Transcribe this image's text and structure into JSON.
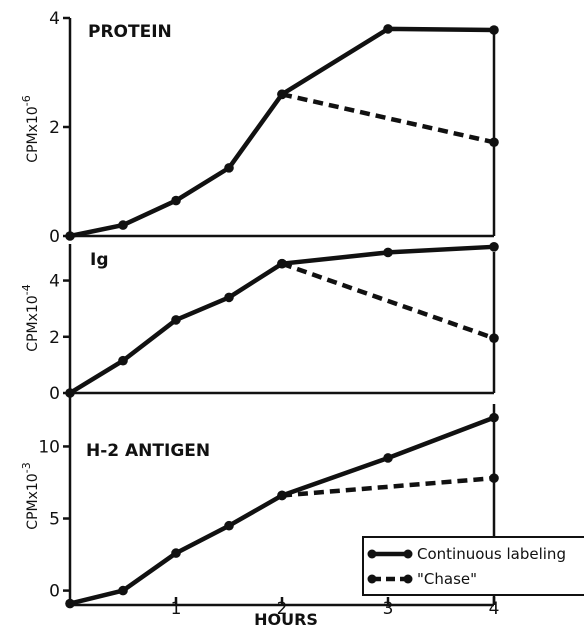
{
  "chart_data": {
    "type": "line",
    "xlabel": "HOURS",
    "x_ticks": [
      "1",
      "2",
      "3",
      "4"
    ],
    "xlim": [
      0,
      4
    ],
    "legend": {
      "placement": "lower-right of bottom panel",
      "entries": [
        {
          "label": "Continuous labeling",
          "style": "solid"
        },
        {
          "label": "\"Chase\"",
          "style": "dashed"
        }
      ]
    },
    "panels": [
      {
        "title": "PROTEIN",
        "ylabel_main": "CPMx10",
        "ylabel_exp": "-6",
        "ylim": [
          0,
          4
        ],
        "y_ticks": [
          0,
          2,
          4
        ],
        "y_tick_labels": [
          "0",
          "2",
          "4"
        ],
        "series": [
          {
            "name": "Continuous labeling",
            "style": "solid",
            "x": [
              0,
              0.5,
              1,
              1.5,
              2,
              3,
              4
            ],
            "y": [
              0,
              0.2,
              0.65,
              1.25,
              2.6,
              3.8,
              3.78
            ]
          },
          {
            "name": "\"Chase\"",
            "style": "dashed",
            "x": [
              2,
              4
            ],
            "y": [
              2.6,
              1.72
            ]
          }
        ]
      },
      {
        "title": "Ig",
        "ylabel_main": "CPMx10",
        "ylabel_exp": "-4",
        "ylim": [
          0,
          5.3
        ],
        "y_ticks": [
          0,
          2,
          4
        ],
        "y_tick_labels": [
          "0",
          "2",
          "4"
        ],
        "series": [
          {
            "name": "Continuous labeling",
            "style": "solid",
            "x": [
              0,
              0.5,
              1,
              1.5,
              2,
              3,
              4
            ],
            "y": [
              0,
              1.15,
              2.6,
              3.4,
              4.6,
              5.0,
              5.2
            ]
          },
          {
            "name": "\"Chase\"",
            "style": "dashed",
            "x": [
              2,
              4
            ],
            "y": [
              4.6,
              1.95
            ]
          }
        ]
      },
      {
        "title": "H-2 ANTIGEN",
        "ylabel_main": "CPMx10",
        "ylabel_exp": "-3",
        "ylim": [
          -1,
          13.5
        ],
        "y_ticks": [
          0,
          5,
          10
        ],
        "y_tick_labels": [
          "0",
          "5",
          "10"
        ],
        "series": [
          {
            "name": "Continuous labeling",
            "style": "solid",
            "x": [
              0,
              0.5,
              1,
              1.5,
              2,
              3,
              4
            ],
            "y": [
              -0.9,
              0,
              2.6,
              4.5,
              6.6,
              9.2,
              12.0
            ]
          },
          {
            "name": "\"Chase\"",
            "style": "dashed",
            "x": [
              2,
              4
            ],
            "y": [
              6.6,
              7.8
            ]
          }
        ]
      }
    ]
  }
}
